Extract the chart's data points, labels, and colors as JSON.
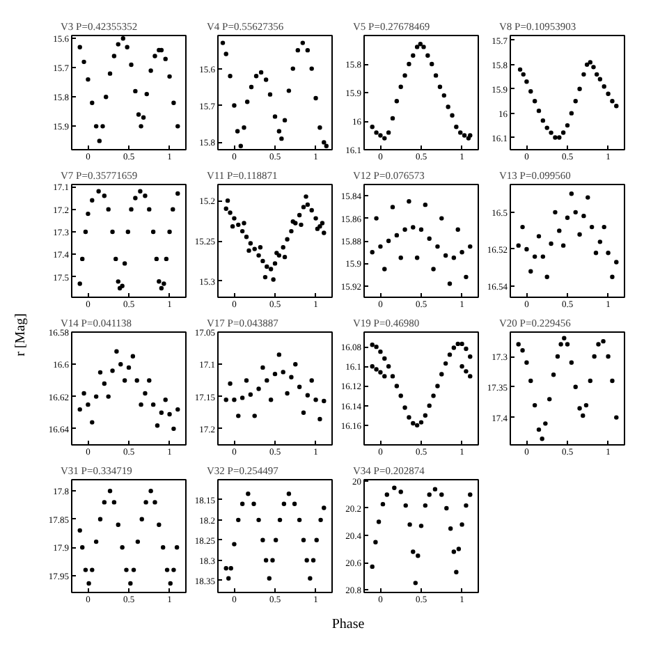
{
  "chart_data": [
    {
      "type": "scatter",
      "title": "V3 P=0.42355352",
      "color": "#000000",
      "marker": "circle",
      "grid": false,
      "xlim": [
        -0.2,
        1.2
      ],
      "xticks": [
        0,
        0.5,
        1
      ],
      "ylim": [
        15.98,
        15.59
      ],
      "yticks": [
        15.6,
        15.7,
        15.8,
        15.9
      ],
      "x": [
        -0.1,
        -0.05,
        0,
        0.05,
        0.1,
        0.14,
        0.18,
        0.22,
        0.27,
        0.32,
        0.37,
        0.43,
        0.48,
        0.53,
        0.58,
        0.62,
        0.65,
        0.68,
        0.72,
        0.77,
        0.82,
        0.87,
        0.9,
        0.95,
        1,
        1.05,
        1.1
      ],
      "values": [
        15.63,
        15.68,
        15.74,
        15.82,
        15.9,
        15.95,
        15.9,
        15.8,
        15.72,
        15.66,
        15.62,
        15.6,
        15.63,
        15.69,
        15.78,
        15.86,
        15.9,
        15.87,
        15.79,
        15.71,
        15.66,
        15.64,
        15.64,
        15.67,
        15.73,
        15.82,
        15.9
      ]
    },
    {
      "type": "scatter",
      "title": "V4 P=0.55627356",
      "color": "#000000",
      "marker": "circle",
      "grid": false,
      "xlim": [
        -0.2,
        1.2
      ],
      "xticks": [
        0,
        0.5,
        1
      ],
      "ylim": [
        15.82,
        15.51
      ],
      "yticks": [
        15.6,
        15.7,
        15.8
      ],
      "x": [
        -0.14,
        -0.1,
        -0.05,
        0,
        0.04,
        0.08,
        0.12,
        0.16,
        0.21,
        0.27,
        0.33,
        0.39,
        0.44,
        0.5,
        0.55,
        0.58,
        0.62,
        0.67,
        0.72,
        0.78,
        0.84,
        0.9,
        0.95,
        1,
        1.05,
        1.1,
        1.13
      ],
      "values": [
        15.53,
        15.56,
        15.62,
        15.7,
        15.77,
        15.81,
        15.76,
        15.69,
        15.65,
        15.62,
        15.61,
        15.63,
        15.67,
        15.73,
        15.77,
        15.79,
        15.74,
        15.66,
        15.6,
        15.55,
        15.53,
        15.55,
        15.6,
        15.68,
        15.76,
        15.8,
        15.81
      ]
    },
    {
      "type": "scatter",
      "title": "V5 P=0.27678469",
      "color": "#000000",
      "marker": "circle",
      "grid": false,
      "xlim": [
        -0.2,
        1.2
      ],
      "xticks": [
        0,
        0.5,
        1
      ],
      "ylim": [
        16.1,
        15.7
      ],
      "yticks": [
        15.8,
        15.9,
        16,
        16.1
      ],
      "x": [
        -0.1,
        -0.05,
        0,
        0.05,
        0.1,
        0.15,
        0.2,
        0.25,
        0.3,
        0.35,
        0.4,
        0.45,
        0.49,
        0.53,
        0.58,
        0.63,
        0.68,
        0.73,
        0.78,
        0.83,
        0.88,
        0.93,
        0.98,
        1.03,
        1.08,
        1.1
      ],
      "values": [
        16.02,
        16.04,
        16.05,
        16.06,
        16.04,
        15.99,
        15.93,
        15.88,
        15.84,
        15.8,
        15.77,
        15.74,
        15.73,
        15.74,
        15.77,
        15.8,
        15.84,
        15.88,
        15.91,
        15.95,
        15.98,
        16.02,
        16.04,
        16.05,
        16.06,
        16.05
      ]
    },
    {
      "type": "scatter",
      "title": "V8 P=0.10953903",
      "color": "#000000",
      "marker": "circle",
      "grid": false,
      "xlim": [
        -0.2,
        1.2
      ],
      "xticks": [
        0,
        0.5,
        1
      ],
      "ylim": [
        16.15,
        15.68
      ],
      "yticks": [
        15.7,
        15.8,
        15.9,
        16,
        16.1
      ],
      "x": [
        -0.08,
        -0.04,
        0,
        0.05,
        0.1,
        0.15,
        0.2,
        0.25,
        0.3,
        0.35,
        0.4,
        0.45,
        0.5,
        0.55,
        0.6,
        0.65,
        0.7,
        0.74,
        0.78,
        0.82,
        0.86,
        0.9,
        0.95,
        1,
        1.05,
        1.1
      ],
      "values": [
        15.82,
        15.84,
        15.87,
        15.91,
        15.95,
        15.99,
        16.03,
        16.06,
        16.08,
        16.1,
        16.1,
        16.08,
        16.05,
        16,
        15.95,
        15.9,
        15.84,
        15.8,
        15.79,
        15.81,
        15.84,
        15.86,
        15.89,
        15.92,
        15.95,
        15.97
      ]
    },
    {
      "type": "scatter",
      "title": "V7 P=0.35771659",
      "color": "#000000",
      "marker": "circle",
      "grid": false,
      "xlim": [
        -0.2,
        1.2
      ],
      "xticks": [
        0,
        0.5,
        1
      ],
      "ylim": [
        17.59,
        17.09
      ],
      "yticks": [
        17.1,
        17.2,
        17.3,
        17.4,
        17.5
      ],
      "x": [
        -0.1,
        -0.07,
        -0.03,
        0,
        0.05,
        0.13,
        0.2,
        0.25,
        0.3,
        0.34,
        0.37,
        0.39,
        0.42,
        0.45,
        0.49,
        0.53,
        0.58,
        0.64,
        0.7,
        0.75,
        0.8,
        0.84,
        0.87,
        0.9,
        0.93,
        0.96,
        1,
        1.04,
        1.1
      ],
      "values": [
        17.53,
        17.42,
        17.3,
        17.22,
        17.16,
        17.12,
        17.14,
        17.2,
        17.3,
        17.42,
        17.52,
        17.55,
        17.54,
        17.44,
        17.3,
        17.2,
        17.15,
        17.12,
        17.14,
        17.2,
        17.3,
        17.42,
        17.52,
        17.55,
        17.53,
        17.42,
        17.3,
        17.2,
        17.13
      ]
    },
    {
      "type": "scatter",
      "title": "V11 P=0.118871",
      "color": "#000000",
      "marker": "circle",
      "grid": false,
      "xlim": [
        -0.2,
        1.2
      ],
      "xticks": [
        0,
        0.5,
        1
      ],
      "ylim": [
        15.32,
        15.18
      ],
      "yticks": [
        15.2,
        15.25,
        15.3
      ],
      "x": [
        -0.1,
        -0.05,
        0,
        0.05,
        0.1,
        0.15,
        0.2,
        0.25,
        0.3,
        0.35,
        0.4,
        0.45,
        0.5,
        0.55,
        0.6,
        0.65,
        0.7,
        0.75,
        0.8,
        0.85,
        0.9,
        0.95,
        1,
        1.05,
        1.1,
        -0.08,
        0.12,
        0.32,
        0.52,
        0.72,
        0.88,
        1.08,
        -0.02,
        0.18,
        0.38,
        0.48,
        0.62,
        0.82,
        1.02
      ],
      "values": [
        15.21,
        15.215,
        15.222,
        15.23,
        15.238,
        15.245,
        15.253,
        15.26,
        15.268,
        15.275,
        15.282,
        15.285,
        15.278,
        15.268,
        15.258,
        15.248,
        15.238,
        15.228,
        15.218,
        15.208,
        15.205,
        15.212,
        15.222,
        15.232,
        15.24,
        15.2,
        15.228,
        15.258,
        15.265,
        15.226,
        15.195,
        15.228,
        15.232,
        15.262,
        15.295,
        15.298,
        15.27,
        15.23,
        15.235
      ]
    },
    {
      "type": "scatter",
      "title": "V12 P=0.076573",
      "color": "#000000",
      "marker": "circle",
      "grid": false,
      "xlim": [
        -0.2,
        1.2
      ],
      "xticks": [
        0,
        0.5,
        1
      ],
      "ylim": [
        15.93,
        15.83
      ],
      "yticks": [
        15.84,
        15.86,
        15.88,
        15.9,
        15.92
      ],
      "x": [
        -0.1,
        0,
        0.1,
        0.2,
        0.3,
        0.4,
        0.5,
        0.6,
        0.7,
        0.8,
        0.9,
        1,
        1.1,
        -0.05,
        0.15,
        0.35,
        0.55,
        0.75,
        0.95,
        0.05,
        0.25,
        0.45,
        0.65,
        0.85,
        1.05
      ],
      "values": [
        15.89,
        15.885,
        15.88,
        15.875,
        15.87,
        15.868,
        15.87,
        15.878,
        15.885,
        15.893,
        15.895,
        15.89,
        15.885,
        15.86,
        15.85,
        15.845,
        15.848,
        15.86,
        15.87,
        15.905,
        15.895,
        15.895,
        15.905,
        15.918,
        15.912
      ]
    },
    {
      "type": "scatter",
      "title": "V13 P=0.099560",
      "color": "#000000",
      "marker": "circle",
      "grid": false,
      "xlim": [
        -0.2,
        1.2
      ],
      "xticks": [
        0,
        0.5,
        1
      ],
      "ylim": [
        16.546,
        16.485
      ],
      "yticks": [
        16.5,
        16.52,
        16.54
      ],
      "x": [
        -0.1,
        0,
        0.1,
        0.2,
        0.3,
        0.4,
        0.5,
        0.6,
        0.7,
        0.8,
        0.9,
        1,
        1.1,
        -0.05,
        0.15,
        0.35,
        0.55,
        0.75,
        0.95,
        0.05,
        0.25,
        0.45,
        0.65,
        0.85,
        1.05
      ],
      "values": [
        16.518,
        16.52,
        16.524,
        16.524,
        16.517,
        16.51,
        16.503,
        16.5,
        16.502,
        16.508,
        16.516,
        16.522,
        16.527,
        16.508,
        16.513,
        16.5,
        16.49,
        16.492,
        16.508,
        16.532,
        16.535,
        16.518,
        16.512,
        16.522,
        16.535
      ]
    },
    {
      "type": "scatter",
      "title": "V14 P=0.041138",
      "ylabel": "r [Mag]",
      "color": "#000000",
      "marker": "circle",
      "grid": false,
      "xlim": [
        -0.2,
        1.2
      ],
      "xticks": [
        0,
        0.5,
        1
      ],
      "ylim": [
        16.65,
        16.58
      ],
      "yticks": [
        16.58,
        16.6,
        16.62,
        16.64
      ],
      "x": [
        -0.1,
        0,
        0.1,
        0.2,
        0.3,
        0.4,
        0.5,
        0.6,
        0.7,
        0.8,
        0.9,
        1,
        1.1,
        -0.05,
        0.15,
        0.35,
        0.55,
        0.75,
        0.95,
        0.05,
        0.25,
        0.45,
        0.65,
        0.85,
        1.05
      ],
      "values": [
        16.628,
        16.625,
        16.62,
        16.612,
        16.604,
        16.6,
        16.602,
        16.61,
        16.618,
        16.625,
        16.63,
        16.631,
        16.628,
        16.618,
        16.605,
        16.592,
        16.595,
        16.61,
        16.622,
        16.636,
        16.62,
        16.61,
        16.625,
        16.638,
        16.64
      ]
    },
    {
      "type": "scatter",
      "title": "V17 P=0.043887",
      "color": "#000000",
      "marker": "circle",
      "grid": false,
      "xlim": [
        -0.2,
        1.2
      ],
      "xticks": [
        0,
        0.5,
        1
      ],
      "ylim": [
        17.225,
        17.05
      ],
      "yticks": [
        17.05,
        17.1,
        17.15,
        17.2
      ],
      "x": [
        -0.1,
        0,
        0.1,
        0.2,
        0.3,
        0.4,
        0.5,
        0.6,
        0.7,
        0.8,
        0.9,
        1,
        1.1,
        -0.05,
        0.15,
        0.35,
        0.55,
        0.75,
        0.95,
        0.05,
        0.25,
        0.45,
        0.65,
        0.85,
        1.05
      ],
      "values": [
        17.155,
        17.155,
        17.152,
        17.147,
        17.138,
        17.125,
        17.115,
        17.112,
        17.12,
        17.135,
        17.148,
        17.155,
        17.157,
        17.13,
        17.125,
        17.105,
        17.085,
        17.1,
        17.125,
        17.18,
        17.18,
        17.155,
        17.145,
        17.175,
        17.185
      ]
    },
    {
      "type": "scatter",
      "title": "V19 P=0.46980",
      "color": "#000000",
      "marker": "circle",
      "grid": false,
      "xlim": [
        -0.2,
        1.2
      ],
      "xticks": [
        0,
        0.5,
        1
      ],
      "ylim": [
        16.18,
        16.065
      ],
      "yticks": [
        16.08,
        16.1,
        16.12,
        16.14,
        16.16
      ],
      "x": [
        -0.1,
        -0.05,
        0,
        0.05,
        0.1,
        0.15,
        0.2,
        0.25,
        0.3,
        0.35,
        0.4,
        0.45,
        0.5,
        0.55,
        0.6,
        0.65,
        0.7,
        0.75,
        0.8,
        0.85,
        0.9,
        0.95,
        1,
        1.05,
        1.1,
        -0.1,
        -0.05,
        0,
        0.05,
        1,
        1.05,
        1.1
      ],
      "values": [
        16.078,
        16.08,
        16.085,
        16.092,
        16.1,
        16.11,
        16.12,
        16.13,
        16.142,
        16.152,
        16.158,
        16.16,
        16.157,
        16.15,
        16.14,
        16.13,
        16.12,
        16.108,
        16.097,
        16.088,
        16.081,
        16.077,
        16.077,
        16.082,
        16.09,
        16.1,
        16.103,
        16.106,
        16.11,
        16.1,
        16.105,
        16.11
      ]
    },
    {
      "type": "scatter",
      "title": "V20 P=0.229456",
      "color": "#000000",
      "marker": "circle",
      "grid": false,
      "xlim": [
        -0.2,
        1.2
      ],
      "xticks": [
        0,
        0.5,
        1
      ],
      "ylim": [
        17.445,
        17.26
      ],
      "yticks": [
        17.3,
        17.35,
        17.4
      ],
      "x": [
        -0.1,
        -0.05,
        0,
        0.05,
        0.1,
        0.15,
        0.19,
        0.23,
        0.28,
        0.33,
        0.38,
        0.42,
        0.46,
        0.5,
        0.55,
        0.6,
        0.65,
        0.69,
        0.73,
        0.78,
        0.83,
        0.88,
        0.94,
        1,
        1.05,
        1.1
      ],
      "values": [
        17.28,
        17.29,
        17.31,
        17.34,
        17.38,
        17.42,
        17.435,
        17.41,
        17.37,
        17.33,
        17.3,
        17.28,
        17.27,
        17.28,
        17.31,
        17.35,
        17.385,
        17.397,
        17.38,
        17.34,
        17.3,
        17.28,
        17.275,
        17.3,
        17.34,
        17.4
      ]
    },
    {
      "type": "scatter",
      "title": "V31 P=0.334719",
      "color": "#000000",
      "marker": "circle",
      "grid": false,
      "xlim": [
        -0.2,
        1.2
      ],
      "xticks": [
        0,
        0.5,
        1
      ],
      "ylim": [
        17.98,
        17.78
      ],
      "yticks": [
        17.8,
        17.85,
        17.9,
        17.95
      ],
      "x": [
        -0.1,
        -0.07,
        -0.03,
        0.01,
        0.05,
        0.1,
        0.15,
        0.2,
        0.27,
        0.32,
        0.37,
        0.42,
        0.47,
        0.52,
        0.56,
        0.61,
        0.66,
        0.71,
        0.77,
        0.82,
        0.87,
        0.92,
        0.97,
        1.01,
        1.05,
        1.09
      ],
      "values": [
        17.87,
        17.9,
        17.94,
        17.964,
        17.94,
        17.89,
        17.85,
        17.82,
        17.8,
        17.82,
        17.86,
        17.9,
        17.94,
        17.964,
        17.94,
        17.89,
        17.85,
        17.82,
        17.8,
        17.82,
        17.86,
        17.9,
        17.94,
        17.964,
        17.94,
        17.9
      ]
    },
    {
      "type": "scatter",
      "title": "V32 P=0.254497",
      "xlabel": "Phase",
      "color": "#000000",
      "marker": "circle",
      "grid": false,
      "xlim": [
        -0.2,
        1.2
      ],
      "xticks": [
        0,
        0.5,
        1
      ],
      "ylim": [
        18.38,
        18.1
      ],
      "yticks": [
        18.15,
        18.2,
        18.25,
        18.3,
        18.35
      ],
      "x": [
        -0.1,
        -0.07,
        -0.04,
        0,
        0.05,
        0.1,
        0.17,
        0.24,
        0.3,
        0.35,
        0.39,
        0.43,
        0.47,
        0.51,
        0.56,
        0.61,
        0.67,
        0.74,
        0.8,
        0.85,
        0.89,
        0.93,
        0.97,
        1.01,
        1.06,
        1.1
      ],
      "values": [
        18.32,
        18.345,
        18.32,
        18.26,
        18.2,
        18.16,
        18.135,
        18.16,
        18.2,
        18.25,
        18.3,
        18.345,
        18.3,
        18.25,
        18.2,
        18.16,
        18.135,
        18.16,
        18.2,
        18.25,
        18.3,
        18.345,
        18.3,
        18.25,
        18.2,
        18.17
      ]
    },
    {
      "type": "scatter",
      "title": "V34 P=0.202874",
      "color": "#000000",
      "marker": "circle",
      "grid": false,
      "xlim": [
        -0.2,
        1.2
      ],
      "xticks": [
        0,
        0.5,
        1
      ],
      "ylim": [
        20.82,
        19.99
      ],
      "yticks": [
        20,
        20.2,
        20.4,
        20.6,
        20.8
      ],
      "x": [
        -0.1,
        -0.06,
        -0.02,
        0.03,
        0.08,
        0.17,
        0.25,
        0.31,
        0.36,
        0.4,
        0.43,
        0.46,
        0.5,
        0.55,
        0.6,
        0.67,
        0.75,
        0.81,
        0.86,
        0.9,
        0.93,
        0.96,
        1,
        1.05,
        1.1
      ],
      "values": [
        20.63,
        20.45,
        20.3,
        20.17,
        20.1,
        20.05,
        20.08,
        20.18,
        20.32,
        20.52,
        20.75,
        20.55,
        20.33,
        20.18,
        20.1,
        20.06,
        20.1,
        20.2,
        20.35,
        20.52,
        20.67,
        20.5,
        20.32,
        20.18,
        20.1
      ]
    }
  ]
}
